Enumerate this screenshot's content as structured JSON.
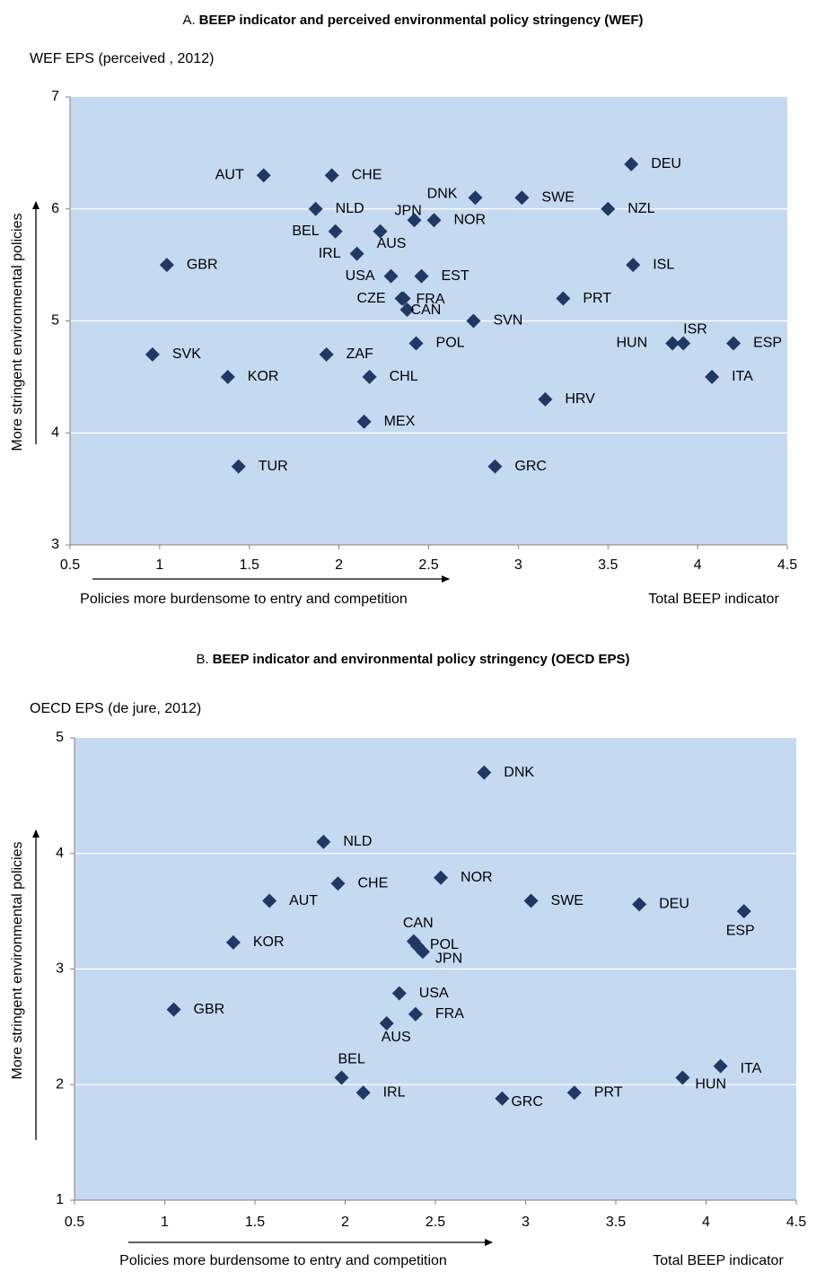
{
  "chart_data": [
    {
      "type": "scatter",
      "panel": "A.",
      "title": "BEEP indicator and perceived environmental policy stringency (WEF)",
      "y_label": "WEF EPS (perceived , 2012)",
      "y_arrow_label": "More stringent environmental policies",
      "x_arrow_label": "Policies more burdensome to entry and competition",
      "x_label": "Total BEEP indicator",
      "color": "#1f3864",
      "grid": true,
      "labels": [
        "AUT",
        "CHE",
        "DNK",
        "DEU",
        "SWE",
        "NZL",
        "NLD",
        "JPN",
        "NOR",
        "BEL",
        "AUS",
        "GBR",
        "IRL",
        "ISL",
        "USA",
        "EST",
        "CZE",
        "FRA",
        "CAN",
        "PRT",
        "SVN",
        "HUN",
        "ISR",
        "ESP",
        "POL",
        "SVK",
        "ZAF",
        "KOR",
        "CHL",
        "ITA",
        "HRV",
        "MEX",
        "TUR",
        "GRC"
      ],
      "x": [
        1.58,
        1.96,
        2.76,
        3.63,
        3.02,
        3.5,
        1.87,
        2.42,
        2.53,
        1.98,
        2.23,
        1.04,
        2.1,
        3.64,
        2.29,
        2.46,
        2.35,
        2.36,
        2.38,
        3.25,
        2.75,
        3.86,
        3.92,
        4.2,
        2.43,
        0.96,
        1.93,
        1.38,
        2.17,
        4.08,
        3.15,
        2.14,
        1.44,
        2.87
      ],
      "values": [
        6.3,
        6.3,
        6.1,
        6.4,
        6.1,
        6.0,
        6.0,
        5.9,
        5.9,
        5.8,
        5.8,
        5.5,
        5.6,
        5.5,
        5.4,
        5.4,
        5.2,
        5.2,
        5.1,
        5.2,
        5.0,
        4.8,
        4.8,
        4.8,
        4.8,
        4.7,
        4.7,
        4.5,
        4.5,
        4.5,
        4.3,
        4.1,
        3.7,
        3.7
      ],
      "xlim": [
        0.5,
        4.5
      ],
      "xticks": [
        0.5,
        1,
        1.5,
        2,
        2.5,
        3,
        3.5,
        4,
        4.5
      ],
      "ylim": [
        3,
        7
      ],
      "yticks": [
        3,
        4,
        5,
        6,
        7
      ]
    },
    {
      "type": "scatter",
      "panel": "B.",
      "title": "BEEP indicator and environmental policy stringency (OECD EPS)",
      "y_label": "OECD EPS (de jure, 2012)",
      "y_arrow_label": "More stringent environmental policies",
      "x_arrow_label": "Policies more burdensome to entry and competition",
      "x_label": "Total BEEP indicator",
      "color": "#1f3864",
      "grid": true,
      "labels": [
        "DNK",
        "NLD",
        "CHE",
        "NOR",
        "AUT",
        "SWE",
        "DEU",
        "ESP",
        "CAN",
        "KOR",
        "POL",
        "JPN",
        "GBR",
        "USA",
        "FRA",
        "AUS",
        "BEL",
        "IRL",
        "GRC",
        "PRT",
        "HUN",
        "ITA"
      ],
      "x": [
        2.77,
        1.88,
        1.96,
        2.53,
        1.58,
        3.03,
        3.63,
        4.21,
        2.38,
        1.38,
        2.4,
        2.43,
        1.05,
        2.3,
        2.39,
        2.23,
        1.98,
        2.1,
        2.87,
        3.27,
        3.87,
        4.08
      ],
      "values": [
        4.7,
        4.1,
        3.74,
        3.79,
        3.59,
        3.59,
        3.56,
        3.5,
        3.24,
        3.23,
        3.2,
        3.15,
        2.65,
        2.79,
        2.61,
        2.53,
        2.06,
        1.93,
        1.88,
        1.93,
        2.06,
        2.16
      ],
      "xlim": [
        0.5,
        4.5
      ],
      "xticks": [
        0.5,
        1,
        1.5,
        2,
        2.5,
        3,
        3.5,
        4,
        4.5
      ],
      "ylim": [
        1,
        5
      ],
      "yticks": [
        1,
        2,
        3,
        4,
        5
      ]
    }
  ]
}
